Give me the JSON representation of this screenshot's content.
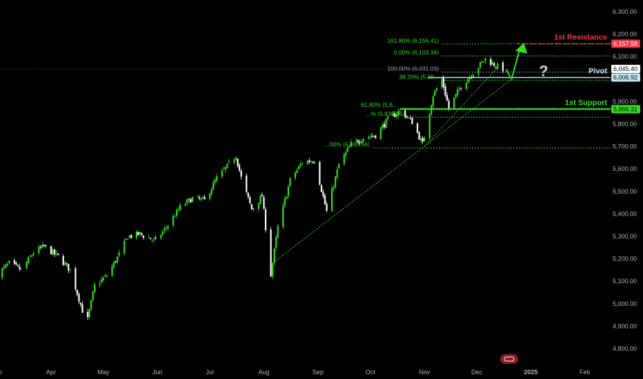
{
  "chart_data": {
    "type": "candlestick",
    "y_axis": {
      "range": [
        4750,
        6350
      ],
      "ticks": [
        "6,300.00",
        "6,200.00",
        "6,100.00",
        "6,000.00",
        "5,900.00",
        "5,800.00",
        "5,700.00",
        "5,600.00",
        "5,500.00",
        "5,400.00",
        "5,300.00",
        "5,200.00",
        "5,100.00",
        "5,000.00",
        "4,900.00",
        "4,800.00"
      ],
      "tick_values": [
        6300,
        6200,
        6100,
        6000,
        5900,
        5800,
        5700,
        5600,
        5500,
        5400,
        5300,
        5200,
        5100,
        5000,
        4900,
        4800
      ]
    },
    "x_axis": {
      "labels": [
        "Mar",
        "Apr",
        "May",
        "Jun",
        "Jul",
        "Aug",
        "Sep",
        "Oct",
        "Nov",
        "Dec",
        "2025",
        "Feb"
      ],
      "label_dates": [
        "2024-03-01",
        "2024-04-01",
        "2024-05-01",
        "2024-06-01",
        "2024-07-01",
        "2024-08-01",
        "2024-09-01",
        "2024-10-01",
        "2024-11-01",
        "2024-12-01",
        "2025-01-01",
        "2025-02-01"
      ]
    },
    "price_path": [
      [
        "2024-03-01",
        5130
      ],
      [
        "2024-03-08",
        5180
      ],
      [
        "2024-03-15",
        5150
      ],
      [
        "2024-03-22",
        5230
      ],
      [
        "2024-03-28",
        5255
      ],
      [
        "2024-04-05",
        5210
      ],
      [
        "2024-04-12",
        5150
      ],
      [
        "2024-04-19",
        4970
      ],
      [
        "2024-04-22",
        4930
      ],
      [
        "2024-04-26",
        5080
      ],
      [
        "2024-05-03",
        5125
      ],
      [
        "2024-05-10",
        5220
      ],
      [
        "2024-05-15",
        5300
      ],
      [
        "2024-05-22",
        5310
      ],
      [
        "2024-05-31",
        5280
      ],
      [
        "2024-06-07",
        5350
      ],
      [
        "2024-06-14",
        5430
      ],
      [
        "2024-06-21",
        5470
      ],
      [
        "2024-06-28",
        5460
      ],
      [
        "2024-07-05",
        5560
      ],
      [
        "2024-07-12",
        5620
      ],
      [
        "2024-07-16",
        5660
      ],
      [
        "2024-07-19",
        5560
      ],
      [
        "2024-07-25",
        5420
      ],
      [
        "2024-07-31",
        5480
      ],
      [
        "2024-08-05",
        5130
      ],
      [
        "2024-08-09",
        5340
      ],
      [
        "2024-08-16",
        5550
      ],
      [
        "2024-08-23",
        5630
      ],
      [
        "2024-08-30",
        5640
      ],
      [
        "2024-09-06",
        5410
      ],
      [
        "2024-09-13",
        5620
      ],
      [
        "2024-09-20",
        5710
      ],
      [
        "2024-09-27",
        5740
      ],
      [
        "2024-10-04",
        5750
      ],
      [
        "2024-10-11",
        5820
      ],
      [
        "2024-10-18",
        5860
      ],
      [
        "2024-10-25",
        5810
      ],
      [
        "2024-10-31",
        5710
      ],
      [
        "2024-11-06",
        5930
      ],
      [
        "2024-11-11",
        6000
      ],
      [
        "2024-11-15",
        5870
      ],
      [
        "2024-11-22",
        5970
      ],
      [
        "2024-11-29",
        6030
      ],
      [
        "2024-12-06",
        6090
      ],
      [
        "2024-12-12",
        6060
      ],
      [
        "2024-12-16",
        6045
      ]
    ],
    "last_price": 6045.4,
    "fibonacci_levels": [
      {
        "label": "161.80% (6,156.41)",
        "value": 6156.41
      },
      {
        "label": "0.00% (6,103.34)",
        "value": 6103.34
      },
      {
        "label": "100.00% (6,031.03)",
        "value": 6031.03
      },
      {
        "label": "38.20% (5,99...",
        "value": 5995
      },
      {
        "label": "61.80% (5,8...",
        "value": 5870
      },
      {
        "label": "...% (5,830.16)",
        "value": 5830.16
      },
      {
        "label": "...00% (5,693.56)",
        "value": 5693.56
      }
    ],
    "annotations": {
      "resistance": {
        "label": "1st Resistance",
        "value": 6157.58,
        "tag": "6,157.58"
      },
      "pivot": {
        "label": "Pivot",
        "value": 6006.92,
        "tag": "6,006.92"
      },
      "support": {
        "label": "1st Support",
        "value": 5866.31,
        "tag": "5,866.31"
      },
      "current": {
        "tag": "6,045.40",
        "value": 6045.4
      },
      "question": "?"
    },
    "projection": [
      [
        "2024-12-21",
        6000
      ],
      [
        "2024-12-26",
        6150
      ]
    ],
    "trendlines": [
      [
        [
          "2024-08-05",
          5175
        ],
        [
          "2024-12-21",
          6000
        ]
      ],
      [
        [
          "2024-11-01",
          5700
        ],
        [
          "2024-12-14",
          6060
        ]
      ]
    ],
    "colors": {
      "up": "#33e01f",
      "down": "#ffffff",
      "resistance": "#f23645",
      "pivot": "#c1e8f0",
      "support": "#33e01f",
      "background": "#000000"
    },
    "grid": false
  }
}
